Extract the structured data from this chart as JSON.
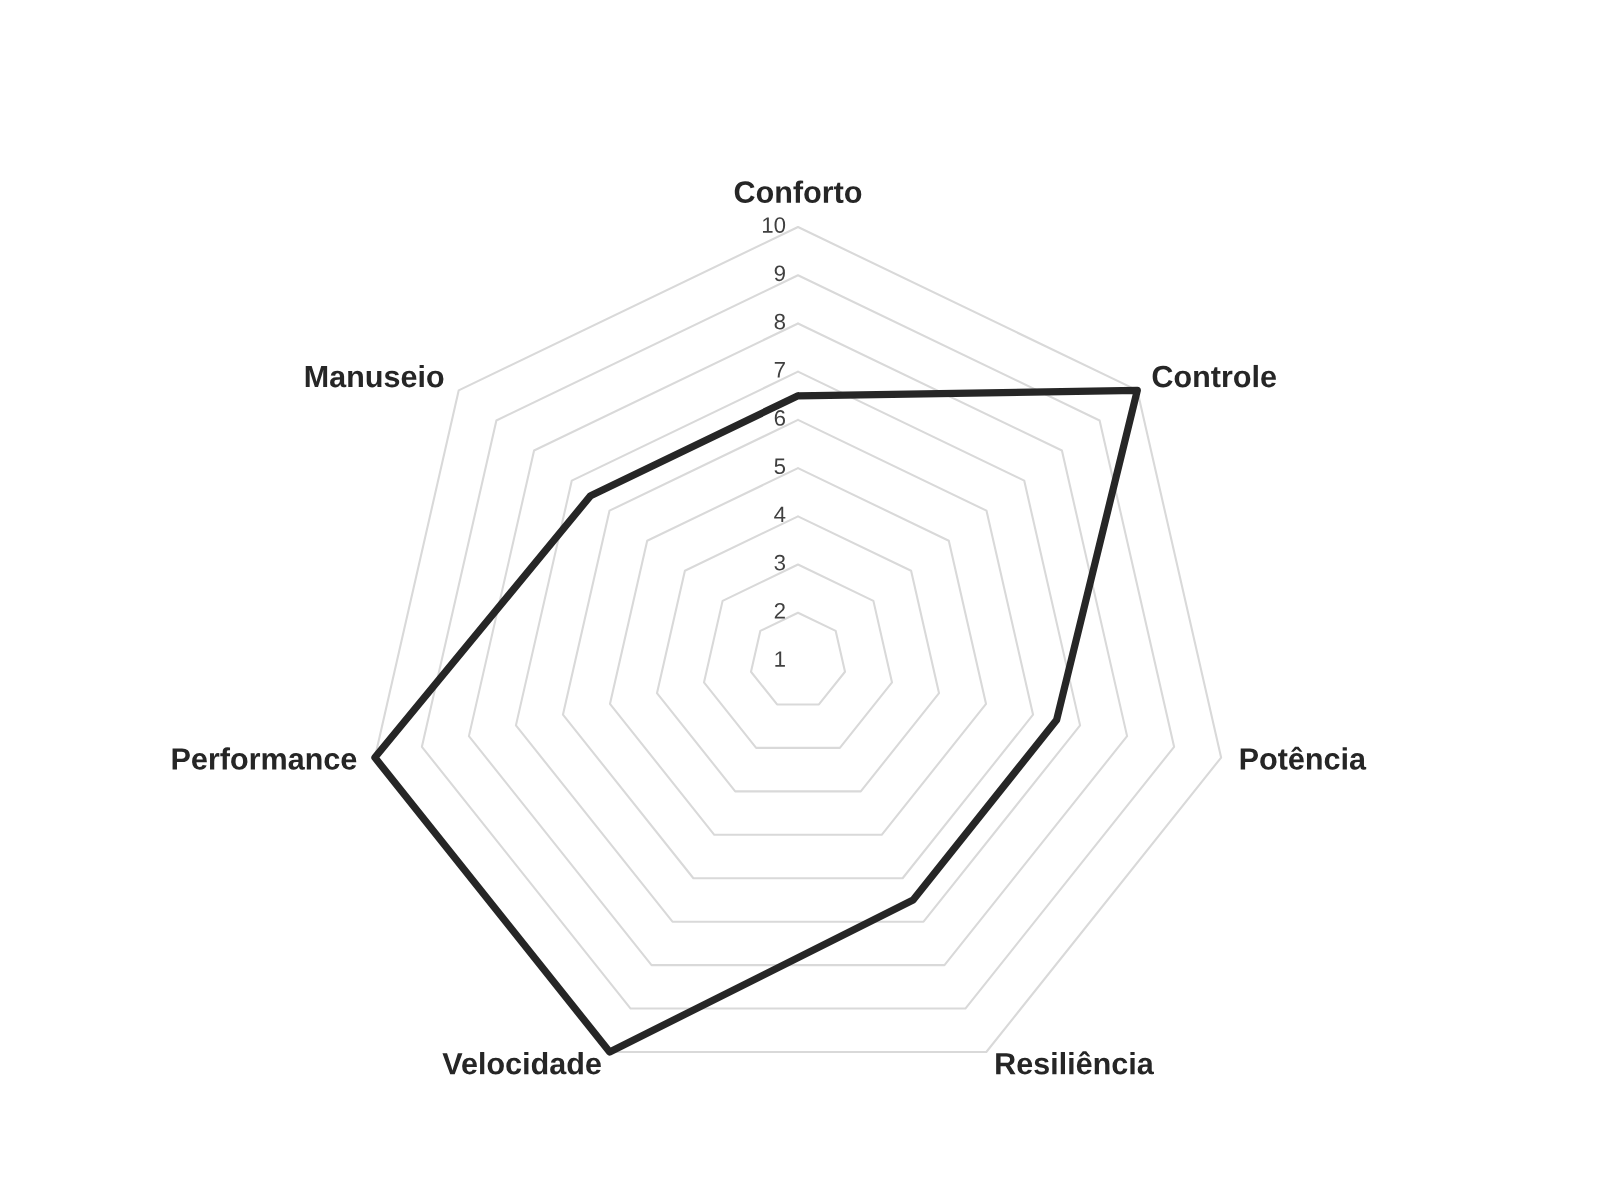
{
  "chart_data": {
    "type": "radar",
    "categories": [
      "Conforto",
      "Controle",
      "Potência",
      "Resiliência",
      "Velocidade",
      "Performance",
      "Manuseio"
    ],
    "series": [
      {
        "color": "#262626",
        "values": [
          6.5,
          10,
          6.5,
          6.5,
          10,
          10,
          6.5
        ]
      }
    ],
    "ylim": [
      1,
      10
    ],
    "yticks": [
      1,
      2,
      3,
      4,
      5,
      6,
      7,
      8,
      9,
      10
    ],
    "grid": true
  }
}
